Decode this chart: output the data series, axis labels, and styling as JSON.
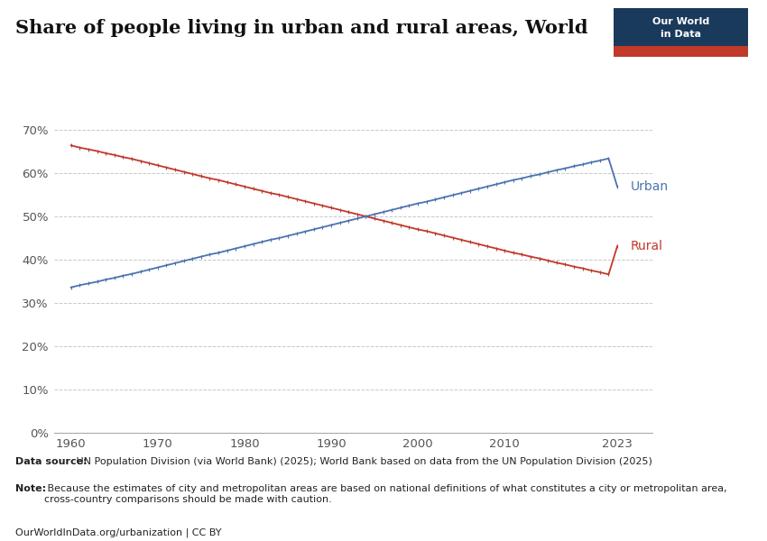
{
  "title": "Share of people living in urban and rural areas, World",
  "background_color": "#ffffff",
  "plot_bg_color": "#ffffff",
  "grid_color": "#c8c8c8",
  "xlim_left": 1958,
  "xlim_right": 2027,
  "ylim": [
    0,
    75
  ],
  "yticks": [
    0,
    10,
    20,
    30,
    40,
    50,
    60,
    70
  ],
  "ytick_labels": [
    "0%",
    "10%",
    "20%",
    "30%",
    "40%",
    "50%",
    "60%",
    "70%"
  ],
  "xticks": [
    1960,
    1970,
    1980,
    1990,
    2000,
    2010,
    2023
  ],
  "urban_color": "#4c72b0",
  "rural_color": "#c0392b",
  "label_urban": "Urban",
  "label_rural": "Rural",
  "years": [
    1960,
    1961,
    1962,
    1963,
    1964,
    1965,
    1966,
    1967,
    1968,
    1969,
    1970,
    1971,
    1972,
    1973,
    1974,
    1975,
    1976,
    1977,
    1978,
    1979,
    1980,
    1981,
    1982,
    1983,
    1984,
    1985,
    1986,
    1987,
    1988,
    1989,
    1990,
    1991,
    1992,
    1993,
    1994,
    1995,
    1996,
    1997,
    1998,
    1999,
    2000,
    2001,
    2002,
    2003,
    2004,
    2005,
    2006,
    2007,
    2008,
    2009,
    2010,
    2011,
    2012,
    2013,
    2014,
    2015,
    2016,
    2017,
    2018,
    2019,
    2020,
    2021,
    2022,
    2023
  ],
  "urban_values": [
    33.6,
    34.1,
    34.5,
    34.9,
    35.4,
    35.8,
    36.3,
    36.7,
    37.2,
    37.7,
    38.2,
    38.7,
    39.2,
    39.7,
    40.2,
    40.7,
    41.2,
    41.6,
    42.1,
    42.6,
    43.1,
    43.6,
    44.1,
    44.6,
    45.0,
    45.5,
    46.0,
    46.5,
    47.0,
    47.5,
    48.0,
    48.5,
    49.0,
    49.5,
    50.0,
    50.5,
    51.0,
    51.5,
    52.0,
    52.5,
    53.0,
    53.4,
    53.9,
    54.4,
    54.9,
    55.4,
    55.9,
    56.4,
    56.9,
    57.4,
    57.9,
    58.4,
    58.8,
    59.3,
    59.7,
    60.2,
    60.7,
    61.1,
    61.6,
    62.0,
    62.5,
    62.9,
    63.4,
    56.9
  ],
  "rural_values": [
    66.4,
    65.9,
    65.5,
    65.1,
    64.6,
    64.2,
    63.7,
    63.3,
    62.8,
    62.3,
    61.8,
    61.3,
    60.8,
    60.3,
    59.8,
    59.3,
    58.8,
    58.4,
    57.9,
    57.4,
    56.9,
    56.4,
    55.9,
    55.4,
    55.0,
    54.5,
    54.0,
    53.5,
    53.0,
    52.5,
    52.0,
    51.5,
    51.0,
    50.5,
    50.0,
    49.5,
    49.0,
    48.5,
    48.0,
    47.5,
    47.0,
    46.6,
    46.1,
    45.6,
    45.1,
    44.6,
    44.1,
    43.6,
    43.1,
    42.6,
    42.1,
    41.6,
    41.2,
    40.7,
    40.3,
    39.8,
    39.3,
    38.9,
    38.4,
    38.0,
    37.5,
    37.1,
    36.6,
    43.1
  ],
  "datasource_bold": "Data source:",
  "datasource_rest": " UN Population Division (via World Bank) (2025); World Bank based on data from the UN Population Division (2025)",
  "note_bold": "Note:",
  "note_rest": " Because the estimates of city and metropolitan areas are based on national definitions of what constitutes a city or metropolitan area,\ncross-country comparisons should be made with caution.",
  "footer_text": "OurWorldInData.org/urbanization | CC BY",
  "owid_box_color": "#1a3a5c",
  "owid_bar_color": "#c0392b"
}
